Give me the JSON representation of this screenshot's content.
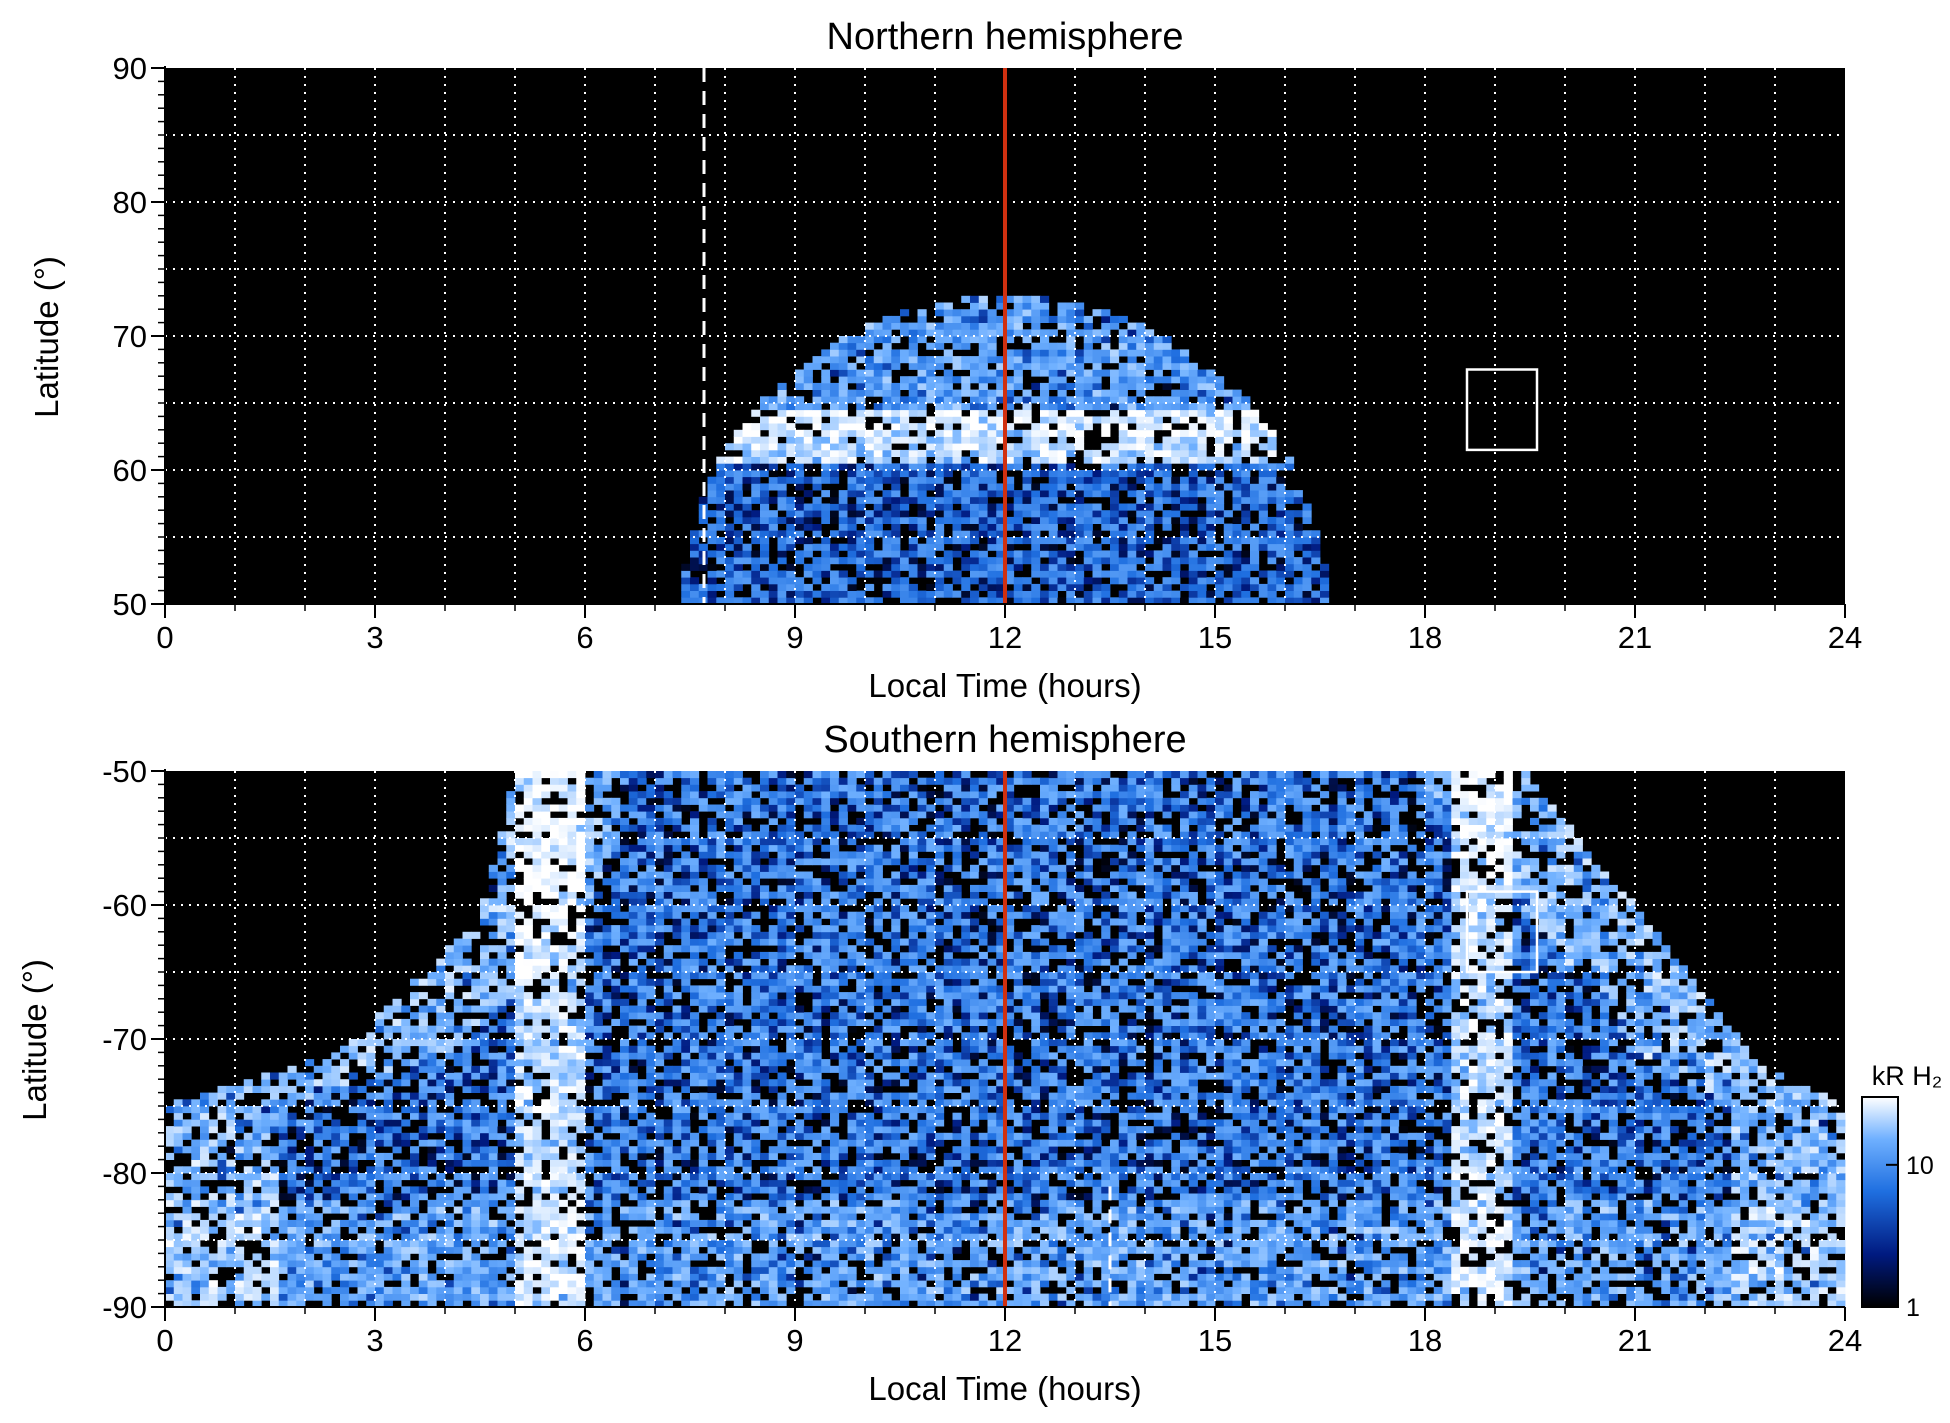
{
  "figure": {
    "colorbar": {
      "label": "kR H₂",
      "ticks": [
        1,
        10
      ],
      "range": [
        1,
        30
      ],
      "scale": "log",
      "colormap": [
        "#000000",
        "#001a80",
        "#1f6fe0",
        "#6fb0ff",
        "#ffffff"
      ]
    },
    "reference_line_color": "#d03010",
    "grid": "dotted white"
  },
  "chart_data": [
    {
      "type": "heatmap",
      "title": "Northern hemisphere",
      "xlabel": "Local Time (hours)",
      "ylabel": "Latitude (°)",
      "xlim": [
        0,
        24
      ],
      "ylim": [
        50,
        90
      ],
      "x_ticks": [
        0,
        3,
        6,
        9,
        12,
        15,
        18,
        21,
        24
      ],
      "y_ticks": [
        50,
        60,
        70,
        80,
        90
      ],
      "grid": true,
      "solid_vline_x": 12,
      "dashed_vline": {
        "x": 7.7,
        "y_range": [
          50,
          90
        ]
      },
      "box": {
        "x": [
          18.6,
          19.6
        ],
        "y": [
          61.5,
          67.5
        ]
      },
      "emission_region": {
        "center_lt": 12.0,
        "edge_latitude": 50,
        "peak_latitude": 73,
        "half_width_at_edge_hours": 4.6,
        "auroral_oval_latitude": 62.5,
        "brightness_range_kR": [
          1,
          30
        ]
      }
    },
    {
      "type": "heatmap",
      "title": "Southern hemisphere",
      "xlabel": "Local Time (hours)",
      "ylabel": "Latitude (°)",
      "xlim": [
        0,
        24
      ],
      "ylim": [
        -90,
        -50
      ],
      "x_ticks": [
        0,
        3,
        6,
        9,
        12,
        15,
        18,
        21,
        24
      ],
      "y_ticks": [
        -90,
        -80,
        -70,
        -60,
        -50
      ],
      "grid": true,
      "solid_vline_x": 12,
      "dashed_vline": {
        "x": 13.5,
        "y_range": [
          -90,
          -81
        ]
      },
      "box": {
        "x": [
          18.6,
          19.6
        ],
        "y": [
          -65,
          -59
        ]
      },
      "emission_region": {
        "left_edge_lt": [
          [
            0,
            -75
          ],
          [
            2.5,
            -71
          ],
          [
            4.5,
            -61
          ],
          [
            5.0,
            -50
          ]
        ],
        "right_edge_lt": [
          [
            19.4,
            -50
          ],
          [
            21.3,
            -62
          ],
          [
            22.8,
            -72
          ],
          [
            24,
            -75
          ]
        ],
        "bright_arcs_lt": [
          5.5,
          18.8
        ],
        "brightness_range_kR": [
          1,
          30
        ]
      }
    }
  ]
}
